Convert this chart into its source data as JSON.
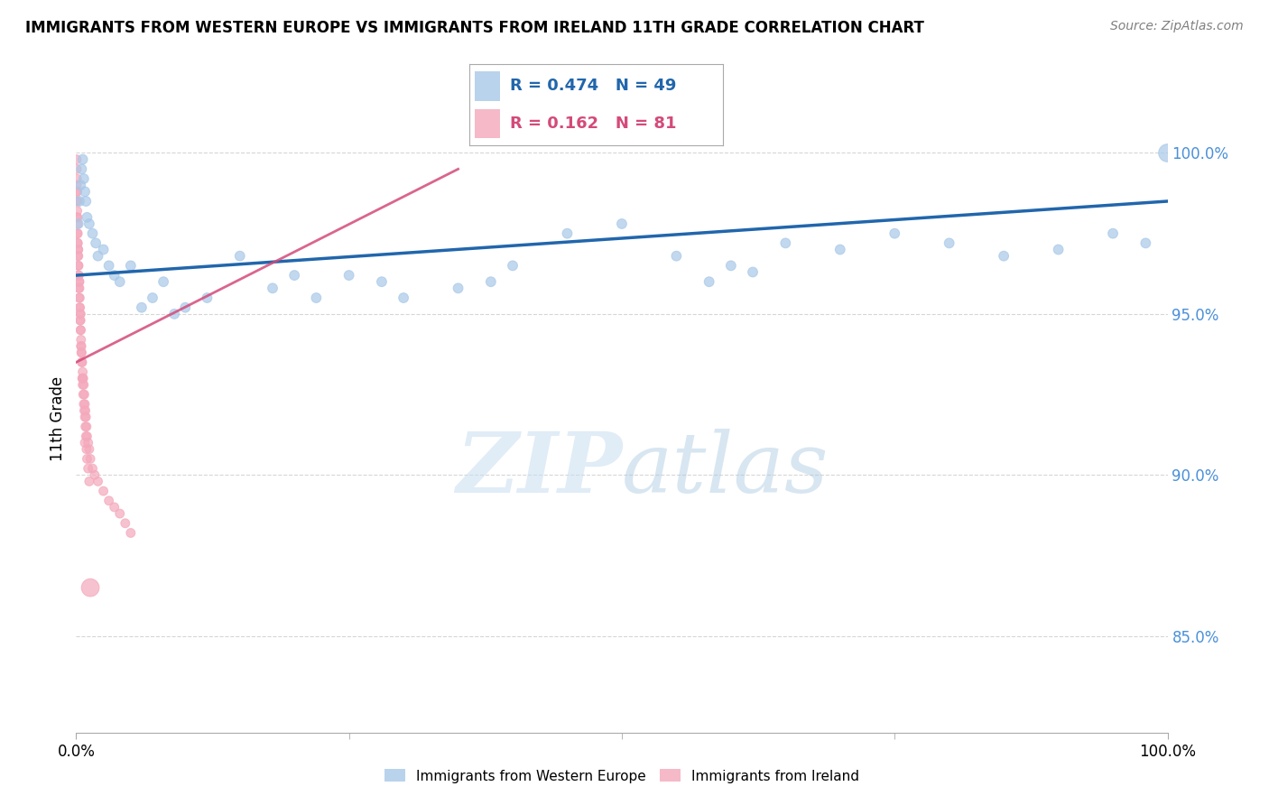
{
  "title": "IMMIGRANTS FROM WESTERN EUROPE VS IMMIGRANTS FROM IRELAND 11TH GRADE CORRELATION CHART",
  "source": "Source: ZipAtlas.com",
  "ylabel": "11th Grade",
  "legend_label_blue": "Immigrants from Western Europe",
  "legend_label_pink": "Immigrants from Ireland",
  "R_blue": 0.474,
  "N_blue": 49,
  "R_pink": 0.162,
  "N_pink": 81,
  "blue_color": "#a8c8e8",
  "pink_color": "#f4a8bb",
  "trend_blue": "#2166ac",
  "trend_pink": "#d44a7a",
  "watermark_zip": "ZIP",
  "watermark_atlas": "atlas",
  "xlim": [
    0,
    100
  ],
  "ylim": [
    82,
    101.5
  ],
  "yticks": [
    85,
    90,
    95,
    100
  ],
  "ytick_labels": [
    "85.0%",
    "90.0%",
    "95.0%",
    "100.0%"
  ],
  "blue_x": [
    0.2,
    0.3,
    0.4,
    0.5,
    0.6,
    0.7,
    0.8,
    0.9,
    1.0,
    1.2,
    1.5,
    1.8,
    2.0,
    2.5,
    3.0,
    3.5,
    4.0,
    5.0,
    6.0,
    7.0,
    8.0,
    9.0,
    10.0,
    12.0,
    15.0,
    18.0,
    20.0,
    22.0,
    25.0,
    28.0,
    30.0,
    35.0,
    38.0,
    40.0,
    45.0,
    50.0,
    55.0,
    60.0,
    65.0,
    70.0,
    75.0,
    80.0,
    85.0,
    90.0,
    95.0,
    98.0,
    100.0,
    62.0,
    58.0
  ],
  "blue_y": [
    97.8,
    98.5,
    99.0,
    99.5,
    99.8,
    99.2,
    98.8,
    98.5,
    98.0,
    97.8,
    97.5,
    97.2,
    96.8,
    97.0,
    96.5,
    96.2,
    96.0,
    96.5,
    95.2,
    95.5,
    96.0,
    95.0,
    95.2,
    95.5,
    96.8,
    95.8,
    96.2,
    95.5,
    96.2,
    96.0,
    95.5,
    95.8,
    96.0,
    96.5,
    97.5,
    97.8,
    96.8,
    96.5,
    97.2,
    97.0,
    97.5,
    97.2,
    96.8,
    97.0,
    97.5,
    97.2,
    100.0,
    96.3,
    96.0
  ],
  "blue_sizes": [
    60,
    60,
    60,
    60,
    60,
    60,
    60,
    60,
    60,
    60,
    60,
    60,
    60,
    60,
    60,
    60,
    60,
    60,
    60,
    60,
    60,
    60,
    60,
    60,
    60,
    60,
    60,
    60,
    60,
    60,
    60,
    60,
    60,
    60,
    60,
    60,
    60,
    60,
    60,
    60,
    60,
    60,
    60,
    60,
    60,
    60,
    200,
    60,
    60
  ],
  "pink_x": [
    0.05,
    0.07,
    0.08,
    0.1,
    0.1,
    0.12,
    0.13,
    0.15,
    0.15,
    0.18,
    0.2,
    0.22,
    0.25,
    0.28,
    0.3,
    0.33,
    0.35,
    0.38,
    0.4,
    0.43,
    0.45,
    0.48,
    0.5,
    0.55,
    0.6,
    0.65,
    0.7,
    0.75,
    0.8,
    0.85,
    0.9,
    0.95,
    1.0,
    1.1,
    1.2,
    1.3,
    1.5,
    1.7,
    2.0,
    2.5,
    3.0,
    3.5,
    4.0,
    4.5,
    5.0,
    0.05,
    0.06,
    0.08,
    0.09,
    0.11,
    0.14,
    0.16,
    0.19,
    0.21,
    0.24,
    0.27,
    0.32,
    0.36,
    0.4,
    0.44,
    0.48,
    0.52,
    0.56,
    0.6,
    0.65,
    0.7,
    0.75,
    0.8,
    0.85,
    0.9,
    0.95,
    1.0,
    1.1,
    1.2,
    0.1,
    0.2,
    0.3,
    0.4,
    0.6,
    0.8,
    1.3
  ],
  "pink_y": [
    99.5,
    99.2,
    98.8,
    98.5,
    98.2,
    98.0,
    97.8,
    97.5,
    97.2,
    97.0,
    96.8,
    96.5,
    96.2,
    96.0,
    95.8,
    95.5,
    95.2,
    95.0,
    94.8,
    94.5,
    94.2,
    94.0,
    93.8,
    93.5,
    93.2,
    93.0,
    92.8,
    92.5,
    92.2,
    92.0,
    91.8,
    91.5,
    91.2,
    91.0,
    90.8,
    90.5,
    90.2,
    90.0,
    89.8,
    89.5,
    89.2,
    89.0,
    88.8,
    88.5,
    88.2,
    99.8,
    99.0,
    98.5,
    98.0,
    97.5,
    97.2,
    96.8,
    96.5,
    96.2,
    95.8,
    95.5,
    95.2,
    94.8,
    94.5,
    94.0,
    93.8,
    93.5,
    93.0,
    92.8,
    92.5,
    92.2,
    92.0,
    91.8,
    91.5,
    91.2,
    90.8,
    90.5,
    90.2,
    89.8,
    98.8,
    97.0,
    96.0,
    95.0,
    93.0,
    91.0,
    86.5
  ],
  "pink_sizes": [
    50,
    50,
    50,
    50,
    50,
    50,
    50,
    50,
    50,
    50,
    50,
    50,
    50,
    50,
    50,
    50,
    50,
    50,
    50,
    50,
    50,
    50,
    50,
    50,
    50,
    50,
    50,
    50,
    50,
    50,
    50,
    50,
    50,
    50,
    50,
    50,
    50,
    50,
    50,
    50,
    50,
    50,
    50,
    50,
    50,
    50,
    50,
    50,
    50,
    50,
    50,
    50,
    50,
    50,
    50,
    50,
    50,
    50,
    50,
    50,
    50,
    50,
    50,
    50,
    50,
    50,
    50,
    50,
    50,
    50,
    50,
    50,
    50,
    50,
    50,
    50,
    50,
    50,
    50,
    50,
    200
  ],
  "blue_trend_x0": 0,
  "blue_trend_x1": 100,
  "blue_trend_y0": 96.2,
  "blue_trend_y1": 98.5,
  "pink_trend_x0": 0,
  "pink_trend_x1": 35,
  "pink_trend_y0": 93.5,
  "pink_trend_y1": 99.5
}
